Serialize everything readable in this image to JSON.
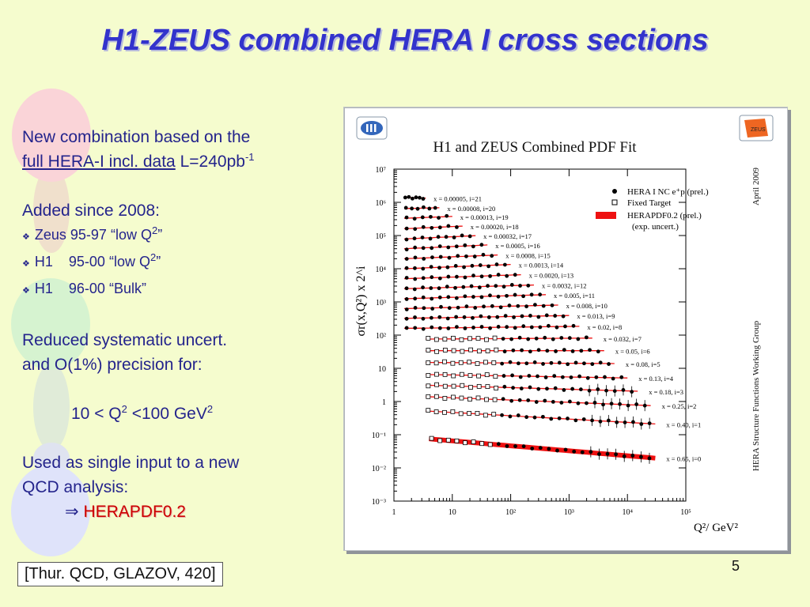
{
  "slide": {
    "title": "H1-ZEUS combined HERA I cross sections",
    "page_number": "5",
    "citation": "[Thur. QCD, GLAZOV, 420]"
  },
  "text": {
    "line1": "New combination based on the",
    "line2_underlined": "full  HERA-I incl. data",
    "line2_rest": " L=240pb",
    "line2_sup": "-1",
    "added": "Added since 2008:",
    "bullets": [
      {
        "exp": "Zeus 95-97",
        "label": "“low Q",
        "sup": "2",
        "end": "”"
      },
      {
        "exp": "H1    95-00",
        "label": "“low Q",
        "sup": "2",
        "end": "”"
      },
      {
        "exp": "H1    96-00",
        "label": "“Bulk”",
        "sup": "",
        "end": ""
      }
    ],
    "reduced1": "Reduced systematic uncert.",
    "reduced2": "and O(1%) precision for:",
    "range_a": "10 < Q",
    "range_sup1": "2",
    "range_b": " <100 GeV",
    "range_sup2": "2",
    "used1": "Used as single input to a new",
    "used2": "QCD analysis:",
    "arrow": "⇒",
    "result": "HERAPDF0.2"
  },
  "figure": {
    "left_logo": "h1-logo-icon",
    "right_logo": "ZEUS",
    "right_side_text": "April 2009",
    "right_side_text2": "HERA Structure Functions Working Group"
  },
  "chart_data": {
    "type": "scatter",
    "title": "H1 and ZEUS Combined PDF Fit",
    "ylabel": "σr(x,Q²) x 2^i",
    "xlabel": "Q²/ GeV²",
    "xscale": "log",
    "yscale": "log",
    "xlim": [
      1,
      100000
    ],
    "ylim": [
      0.001,
      10000000
    ],
    "x_ticks": [
      "1",
      "10",
      "10²",
      "10³",
      "10⁴",
      "10⁵"
    ],
    "y_ticks": [
      "10⁻³",
      "10⁻²",
      "10⁻¹",
      "1",
      "10",
      "10²",
      "10³",
      "10⁴",
      "10⁵",
      "10⁶",
      "10⁷"
    ],
    "legend": {
      "placement": "top-right",
      "entries": [
        "HERA I NC e⁺p (prel.)",
        "Fixed Target",
        "HERAPDF0.2 (prel.)",
        "(exp. uncert.)"
      ]
    },
    "series": [
      {
        "label": "x = 0.00005, i=21",
        "i": 21,
        "qmin": 1.5,
        "qmax": 3.5,
        "y0": 1400000.0,
        "slope": -0.05
      },
      {
        "label": "x = 0.00008, i=20",
        "i": 20,
        "qmin": 1.5,
        "qmax": 6,
        "y0": 650000.0,
        "slope": 0.04
      },
      {
        "label": "x = 0.00013, i=19",
        "i": 19,
        "qmin": 1.5,
        "qmax": 10,
        "y0": 330000.0,
        "slope": 0.07
      },
      {
        "label": "x = 0.00020, i=18",
        "i": 18,
        "qmin": 1.5,
        "qmax": 15,
        "y0": 160000.0,
        "slope": 0.08
      },
      {
        "label": "x = 0.00032, i=17",
        "i": 17,
        "qmin": 1.5,
        "qmax": 25,
        "y0": 79000.0,
        "slope": 0.08
      },
      {
        "label": "x = 0.0005, i=16",
        "i": 16,
        "qmin": 1.5,
        "qmax": 40,
        "y0": 40000.0,
        "slope": 0.08
      },
      {
        "label": "x = 0.0008, i=15",
        "i": 15,
        "qmin": 1.5,
        "qmax": 60,
        "y0": 20000.0,
        "slope": 0.07
      },
      {
        "label": "x = 0.0013, i=14",
        "i": 14,
        "qmin": 1.5,
        "qmax": 100,
        "y0": 10000.0,
        "slope": 0.07
      },
      {
        "label": "x = 0.0020, i=13",
        "i": 13,
        "qmin": 1.5,
        "qmax": 150,
        "y0": 5000.0,
        "slope": 0.06
      },
      {
        "label": "x = 0.0032, i=12",
        "i": 12,
        "qmin": 1.5,
        "qmax": 250,
        "y0": 2500.0,
        "slope": 0.05
      },
      {
        "label": "x = 0.005, i=11",
        "i": 11,
        "qmin": 1.5,
        "qmax": 400,
        "y0": 1250.0,
        "slope": 0.05
      },
      {
        "label": "x = 0.008, i=10",
        "i": 10,
        "qmin": 1.5,
        "qmax": 650,
        "y0": 630.0,
        "slope": 0.04
      },
      {
        "label": "x = 0.013, i=9",
        "i": 9,
        "qmin": 1.5,
        "qmax": 1000,
        "y0": 320.0,
        "slope": 0.03
      },
      {
        "label": "x = 0.02, i=8",
        "i": 8,
        "qmin": 1.5,
        "qmax": 1500,
        "y0": 160.0,
        "slope": 0.02
      },
      {
        "label": "x = 0.032, i=7",
        "i": 7,
        "qmin": 3.5,
        "qmax": 2500,
        "y0": 76,
        "slope": 0.01
      },
      {
        "label": "x = 0.05, i=6",
        "i": 6,
        "qmin": 3.5,
        "qmax": 4000,
        "y0": 34,
        "slope": 0.0
      },
      {
        "label": "x = 0.08, i=5",
        "i": 5,
        "qmin": 3.5,
        "qmax": 6000,
        "y0": 15,
        "slope": -0.01
      },
      {
        "label": "x = 0.13, i=4",
        "i": 4,
        "qmin": 3.5,
        "qmax": 10000,
        "y0": 6.5,
        "slope": -0.03
      },
      {
        "label": "x = 0.18, i=3",
        "i": 3,
        "qmin": 3.5,
        "qmax": 15000,
        "y0": 3.1,
        "slope": -0.05
      },
      {
        "label": "x = 0.25, i=2",
        "i": 2,
        "qmin": 3.5,
        "qmax": 25000,
        "y0": 1.4,
        "slope": -0.07
      },
      {
        "label": "x = 0.40, i=1",
        "i": 1,
        "qmin": 3.5,
        "qmax": 30000,
        "y0": 0.52,
        "slope": -0.1
      },
      {
        "label": "x = 0.65, i=0",
        "i": 0,
        "qmin": 4,
        "qmax": 30000,
        "y0": 0.075,
        "slope": -0.15
      }
    ]
  }
}
